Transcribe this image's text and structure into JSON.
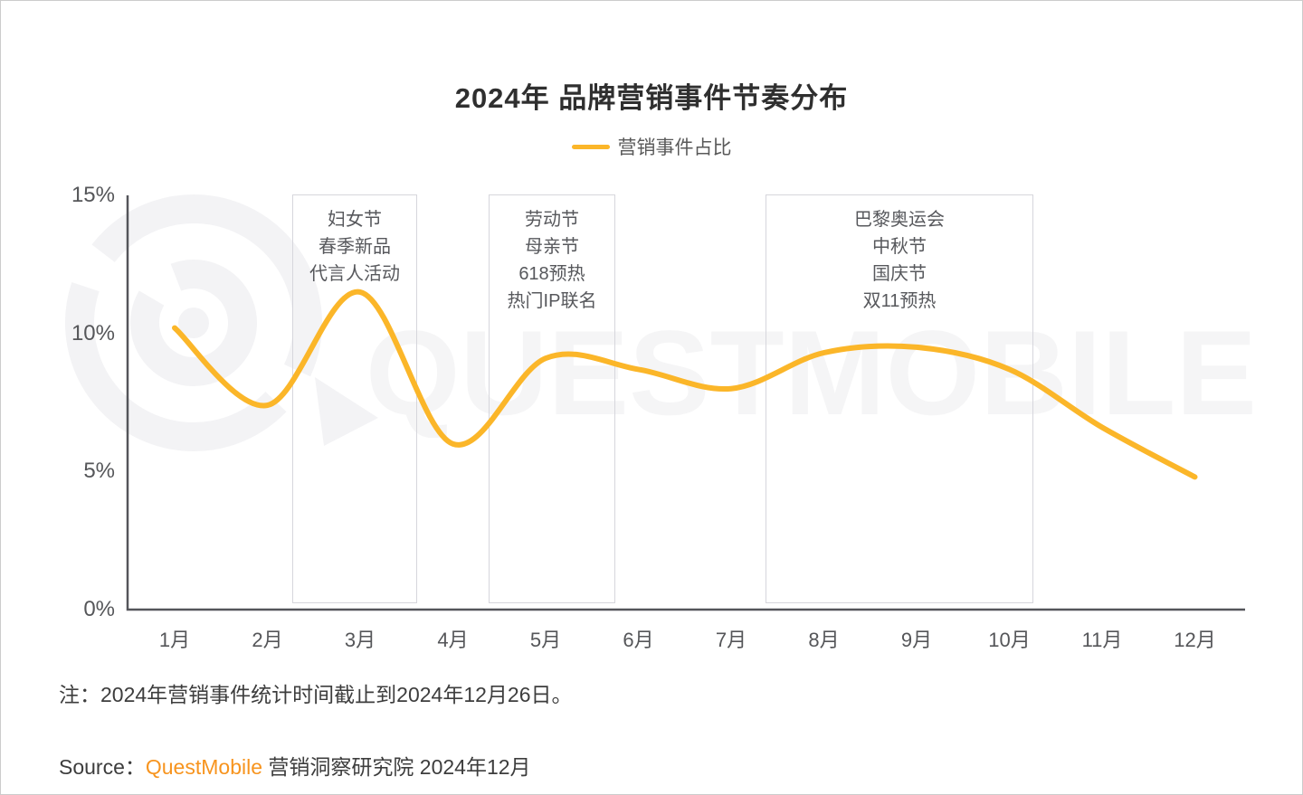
{
  "title": "2024年 品牌营销事件节奏分布",
  "legend": {
    "label": "营销事件占比"
  },
  "watermark": {
    "text": "QUESTMOBILE",
    "logo": "questmobile-rings-logo"
  },
  "note": "注：2024年营销事件统计时间截止到2024年12月26日。",
  "source": {
    "prefix": "Source：",
    "brand": "QuestMobile",
    "suffix": " 营销洞察研究院 2024年12月"
  },
  "colors": {
    "series_line": "#FBB629",
    "brand_orange": "#F7941E",
    "axis": "#54555a",
    "gray_text": "#57585c",
    "box_border": "#d6d6dc",
    "watermark": "#f5f5f6"
  },
  "chart_data": {
    "type": "line",
    "title": "2024年 品牌营销事件节奏分布",
    "series_name": "营销事件占比",
    "categories": [
      "1月",
      "2月",
      "3月",
      "4月",
      "5月",
      "6月",
      "7月",
      "8月",
      "9月",
      "10月",
      "11月",
      "12月"
    ],
    "values": [
      10.2,
      7.4,
      11.5,
      6.0,
      9.1,
      8.7,
      8.0,
      9.3,
      9.5,
      8.7,
      6.6,
      4.8
    ],
    "unit": "%",
    "ylim": [
      0,
      15
    ],
    "yticks": [
      "15%",
      "10%",
      "5%",
      "0%"
    ],
    "grid": false,
    "legend_position": "top-center",
    "annotations": [
      {
        "lines": [
          "妇女节",
          "春季新品",
          "代言人活动"
        ]
      },
      {
        "lines": [
          "劳动节",
          "母亲节",
          "618预热",
          "热门IP联名"
        ]
      },
      {
        "lines": [
          "巴黎奥运会",
          "中秋节",
          "国庆节",
          "双11预热"
        ]
      }
    ]
  }
}
